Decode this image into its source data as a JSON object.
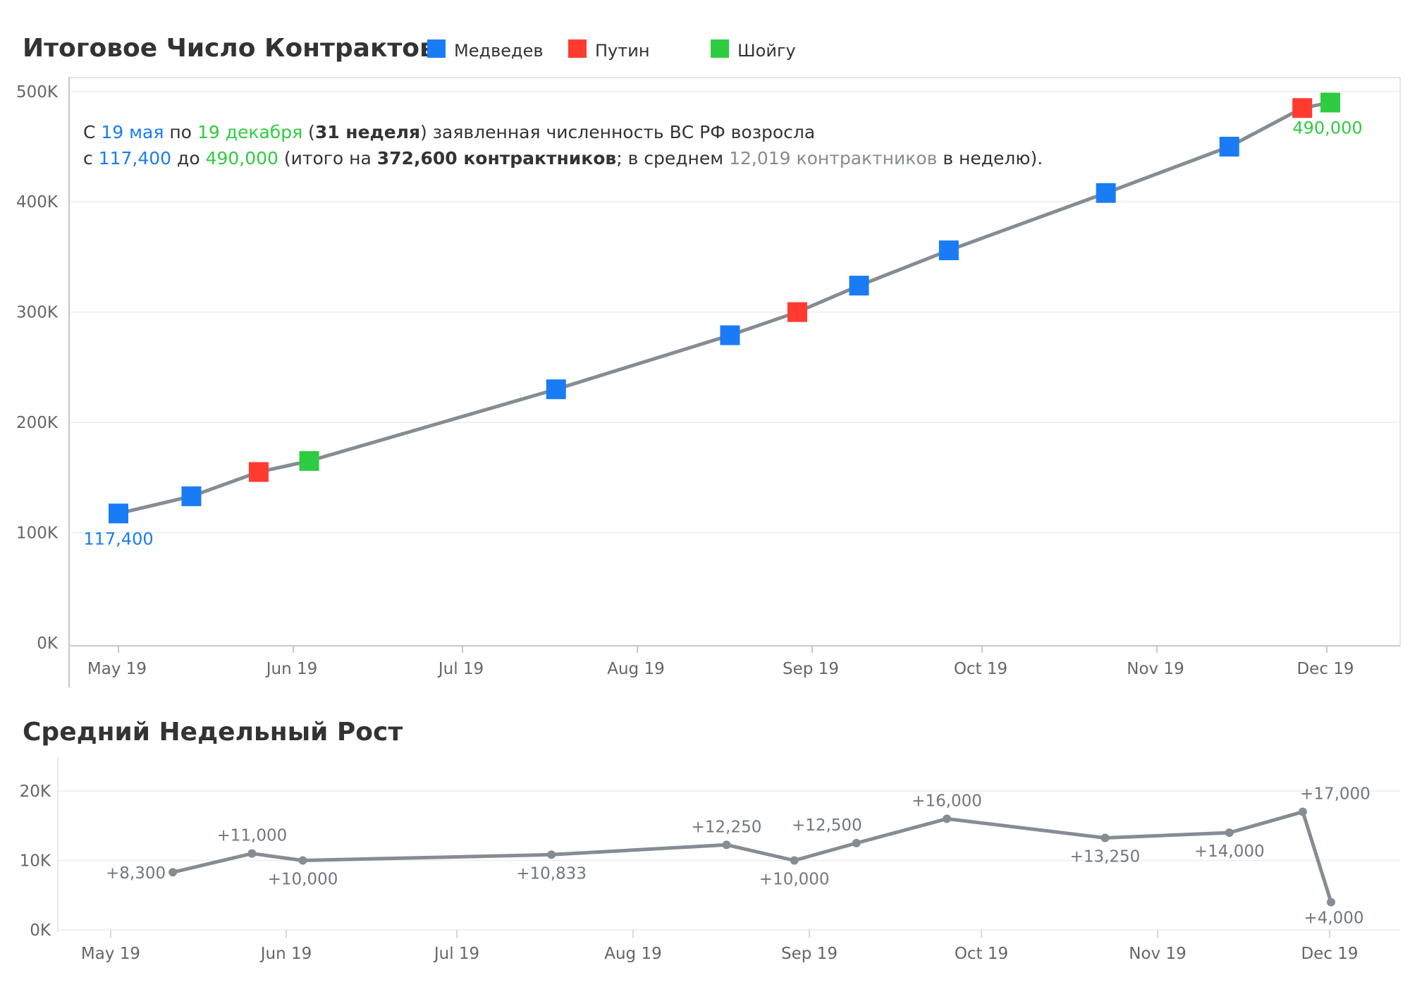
{
  "colors": {
    "medvedev": "#1a7cf5",
    "putin": "#ff3b30",
    "shoigu": "#2ecc40",
    "line": "#858c93",
    "gray_text": "#858c93"
  },
  "chart_data": [
    {
      "type": "line",
      "title": "Итоговое Число Контрактов",
      "legend": [
        {
          "key": "medvedev",
          "label": "Медведев",
          "color": "#1a7cf5"
        },
        {
          "key": "putin",
          "label": "Путин",
          "color": "#ff3b30"
        },
        {
          "key": "shoigu",
          "label": "Шойгу",
          "color": "#2ecc40"
        }
      ],
      "legend_placement": "top, next to title",
      "ylim": [
        0,
        500000
      ],
      "yticks": [
        "0K",
        "100K",
        "200K",
        "300K",
        "400K",
        "500K"
      ],
      "xticks": [
        "May 19",
        "Jun 19",
        "Jul 19",
        "Aug 19",
        "Sep 19",
        "Oct 19",
        "Nov 19",
        "Dec 19"
      ],
      "grid": true,
      "points": [
        {
          "date": "2019-05-19",
          "value": 117400,
          "speaker": "medvedev"
        },
        {
          "date": "2019-06-01",
          "value": 133000,
          "speaker": "medvedev"
        },
        {
          "date": "2019-06-13",
          "value": 155000,
          "speaker": "putin"
        },
        {
          "date": "2019-06-22",
          "value": 165000,
          "speaker": "shoigu"
        },
        {
          "date": "2019-08-05",
          "value": 230000,
          "speaker": "medvedev"
        },
        {
          "date": "2019-09-05",
          "value": 279000,
          "speaker": "medvedev"
        },
        {
          "date": "2019-09-17",
          "value": 300000,
          "speaker": "putin"
        },
        {
          "date": "2019-09-28",
          "value": 324000,
          "speaker": "medvedev"
        },
        {
          "date": "2019-10-14",
          "value": 356000,
          "speaker": "medvedev"
        },
        {
          "date": "2019-11-11",
          "value": 408000,
          "speaker": "medvedev"
        },
        {
          "date": "2019-12-03",
          "value": 450000,
          "speaker": "medvedev"
        },
        {
          "date": "2019-12-16",
          "value": 485000,
          "speaker": "putin"
        },
        {
          "date": "2019-12-21",
          "value": 490000,
          "speaker": "shoigu"
        }
      ],
      "start_label": "117,400",
      "end_label": "490,000",
      "annotation": {
        "line1": [
          {
            "text": "С ",
            "style": "normal"
          },
          {
            "text": "19 мая",
            "style": "blue"
          },
          {
            "text": " по ",
            "style": "normal"
          },
          {
            "text": "19 декабря",
            "style": "green"
          },
          {
            "text": " (",
            "style": "normal"
          },
          {
            "text": "31 неделя",
            "style": "bold"
          },
          {
            "text": ") заявленная численность ВС РФ возросла",
            "style": "normal"
          }
        ],
        "line2": [
          {
            "text": "с ",
            "style": "normal"
          },
          {
            "text": "117,400",
            "style": "blue"
          },
          {
            "text": " до ",
            "style": "normal"
          },
          {
            "text": "490,000",
            "style": "green"
          },
          {
            "text": " (итого на ",
            "style": "normal"
          },
          {
            "text": "372,600 контрактников",
            "style": "bold"
          },
          {
            "text": "; в среднем ",
            "style": "normal"
          },
          {
            "text": "12,019 контрактников",
            "style": "gray"
          },
          {
            "text": " в неделю).",
            "style": "normal"
          }
        ]
      }
    },
    {
      "type": "line",
      "title": "Средний Недельный Рост",
      "ylim": [
        0,
        20000
      ],
      "yticks": [
        "0K",
        "10K",
        "20K"
      ],
      "xticks": [
        "May 19",
        "Jun 19",
        "Jul 19",
        "Aug 19",
        "Sep 19",
        "Oct 19",
        "Nov 19",
        "Dec 19"
      ],
      "grid": true,
      "points": [
        {
          "date": "2019-05-30",
          "value": 8300,
          "label": "+8,300"
        },
        {
          "date": "2019-06-13",
          "value": 11000,
          "label": "+11,000"
        },
        {
          "date": "2019-06-22",
          "value": 10000,
          "label": "+10,000"
        },
        {
          "date": "2019-08-05",
          "value": 10833,
          "label": "+10,833"
        },
        {
          "date": "2019-09-05",
          "value": 12250,
          "label": "+12,250"
        },
        {
          "date": "2019-09-17",
          "value": 10000,
          "label": "+10,000"
        },
        {
          "date": "2019-09-28",
          "value": 12500,
          "label": "+12,500"
        },
        {
          "date": "2019-10-14",
          "value": 16000,
          "label": "+16,000"
        },
        {
          "date": "2019-11-11",
          "value": 13250,
          "label": "+13,250"
        },
        {
          "date": "2019-12-03",
          "value": 14000,
          "label": "+14,000"
        },
        {
          "date": "2019-12-16",
          "value": 17000,
          "label": "+17,000"
        },
        {
          "date": "2019-12-21",
          "value": 4000,
          "label": "+4,000"
        }
      ]
    }
  ]
}
